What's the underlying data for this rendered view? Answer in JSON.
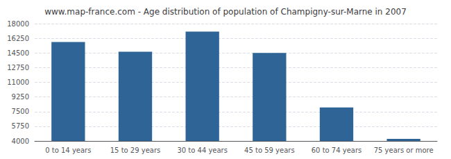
{
  "chart_data": {
    "type": "bar",
    "title": "www.map-france.com - Age distribution of population of Champigny-sur-Marne in 2007",
    "categories": [
      "0 to 14 years",
      "15 to 29 years",
      "30 to 44 years",
      "45 to 59 years",
      "60 to 74 years",
      "75 years or more"
    ],
    "values": [
      15800,
      14650,
      17050,
      14500,
      8000,
      4250
    ],
    "color": "#2e6496",
    "ylim": [
      4000,
      18000
    ],
    "yticks": [
      4000,
      5750,
      7500,
      9250,
      11000,
      12750,
      14500,
      16250,
      18000
    ],
    "grid": true
  }
}
